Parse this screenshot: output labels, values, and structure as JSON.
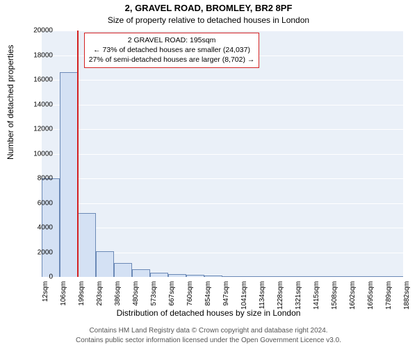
{
  "title_main": "2, GRAVEL ROAD, BROMLEY, BR2 8PF",
  "title_sub": "Size of property relative to detached houses in London",
  "ylabel": "Number of detached properties",
  "xlabel": "Distribution of detached houses by size in London",
  "credit1": "Contains HM Land Registry data © Crown copyright and database right 2024.",
  "credit2": "Contains public sector information licensed under the Open Government Licence v3.0.",
  "chart": {
    "type": "histogram",
    "plot_bg": "#eaf0f8",
    "grid_color": "#ffffff",
    "bar_fill": "#d4e1f4",
    "bar_stroke": "#6b89b6",
    "marker_color": "#d42020",
    "annotation_border": "#d42020",
    "ylim": [
      0,
      20000
    ],
    "ytick_step": 2000,
    "yticks": [
      0,
      2000,
      4000,
      6000,
      8000,
      10000,
      12000,
      14000,
      16000,
      18000,
      20000
    ],
    "xticks": [
      "12sqm",
      "106sqm",
      "199sqm",
      "293sqm",
      "386sqm",
      "480sqm",
      "573sqm",
      "667sqm",
      "760sqm",
      "854sqm",
      "947sqm",
      "1041sqm",
      "1134sqm",
      "1228sqm",
      "1321sqm",
      "1415sqm",
      "1508sqm",
      "1602sqm",
      "1695sqm",
      "1789sqm",
      "1882sqm"
    ],
    "values": [
      8000,
      16600,
      5200,
      2100,
      1100,
      600,
      350,
      220,
      150,
      110,
      80,
      60,
      45,
      35,
      28,
      22,
      18,
      14,
      10,
      8
    ],
    "marker_bin_index": 1,
    "marker_fraction_in_bin": 0.95,
    "annotation": {
      "line1": "2 GRAVEL ROAD: 195sqm",
      "line2": "← 73% of detached houses are smaller (24,037)",
      "line3": "27% of semi-detached houses are larger (8,702) →"
    }
  }
}
